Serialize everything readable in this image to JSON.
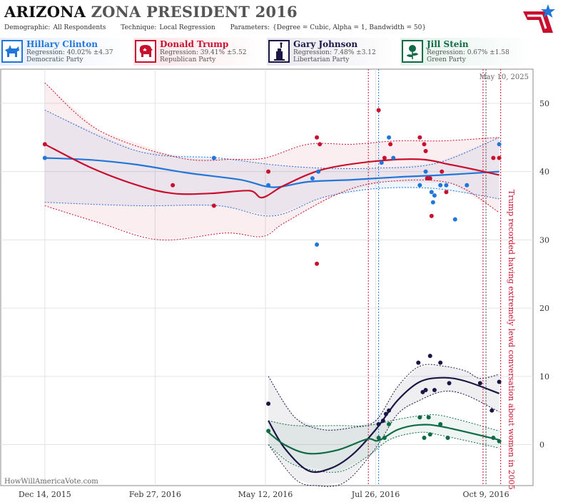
{
  "header": {
    "title_state": "ARIZONA",
    "title_race": "ZONA PRESIDENT 2016",
    "demographic_label": "Demographic:",
    "demographic_value": "All Respondents",
    "technique_label": "Technique:",
    "technique_value": "Local Regression",
    "parameters_label": "Parameters:",
    "parameters_value": "{Degree = Cubic, Alpha = 1, Bandwidth = 50}"
  },
  "candidates": [
    {
      "name": "Hillary Clinton",
      "regression": "Regression: 40.02% ±4.37",
      "party": "Democratic Party",
      "color": "#2176d9",
      "bg": "#e3eefb",
      "icon": "donkey-icon"
    },
    {
      "name": "Donald Trump",
      "regression": "Regression: 39.41% ±5.52",
      "party": "Republican Party",
      "color": "#c8102e",
      "bg": "#fbe3e6",
      "icon": "elephant-icon"
    },
    {
      "name": "Gary Johnson",
      "regression": "Regression: 7.48% ±3.12",
      "party": "Libertarian Party",
      "color": "#1a1747",
      "bg": "#e6e6ee",
      "icon": "liberty-statue-icon"
    },
    {
      "name": "Jill Stein",
      "regression": "Regression: 0.67% ±1.58",
      "party": "Green Party",
      "color": "#0f6b45",
      "bg": "#e2f1ea",
      "icon": "rose-icon"
    }
  ],
  "date_label": "May 10, 2025",
  "watermark": "HowWillAmericaVote.com",
  "annotation": "Trump recorded having extremely lewd conversation about women in 2005",
  "chart_data": {
    "type": "scatter",
    "x_axis": {
      "type": "date",
      "range": [
        "2015-11-14",
        "2016-11-10"
      ],
      "ticks": [
        "2015-12-14",
        "2016-02-27",
        "2016-05-12",
        "2016-07-26",
        "2016-10-09"
      ],
      "tick_labels": [
        "Dec 14, 2015",
        "Feb 27, 2016",
        "May 12, 2016",
        "Jul 26, 2016",
        "Oct 9, 2016"
      ]
    },
    "y_axis": {
      "range": [
        -6,
        55
      ],
      "ticks": [
        0,
        10,
        20,
        30,
        40,
        50
      ],
      "position": "right"
    },
    "grid": true,
    "event_lines": [
      {
        "date": "2016-07-21",
        "color": "#c8102e"
      },
      {
        "date": "2016-07-28",
        "color": "#2176d9"
      },
      {
        "date": "2016-10-07",
        "color": "#c8102e"
      },
      {
        "date": "2016-10-09",
        "color": "#555555"
      },
      {
        "date": "2016-10-19",
        "color": "#c8102e"
      }
    ],
    "series": [
      {
        "name": "Hillary Clinton",
        "color": "#2176d9",
        "points": [
          [
            "2015-12-14",
            42
          ],
          [
            "2016-04-07",
            42
          ],
          [
            "2016-05-14",
            38
          ],
          [
            "2016-06-13",
            39
          ],
          [
            "2016-06-16",
            29.3
          ],
          [
            "2016-06-17",
            40
          ],
          [
            "2016-07-30",
            41.3
          ],
          [
            "2016-08-04",
            45
          ],
          [
            "2016-08-07",
            42
          ],
          [
            "2016-08-25",
            38
          ],
          [
            "2016-08-29",
            40
          ],
          [
            "2016-08-31",
            39
          ],
          [
            "2016-09-02",
            37
          ],
          [
            "2016-09-03",
            35.5
          ],
          [
            "2016-09-04",
            36.5
          ],
          [
            "2016-09-08",
            38
          ],
          [
            "2016-09-12",
            38
          ],
          [
            "2016-09-18",
            33
          ],
          [
            "2016-09-26",
            38
          ],
          [
            "2016-10-18",
            44
          ]
        ],
        "trend": [
          [
            "2015-12-14",
            42
          ],
          [
            "2016-01-15",
            41.7
          ],
          [
            "2016-02-15",
            41
          ],
          [
            "2016-03-20",
            39.8
          ],
          [
            "2016-04-25",
            38.8
          ],
          [
            "2016-05-17",
            37.7
          ],
          [
            "2016-06-10",
            38.5
          ],
          [
            "2016-07-10",
            38.8
          ],
          [
            "2016-08-10",
            39.2
          ],
          [
            "2016-09-10",
            39.5
          ],
          [
            "2016-10-18",
            40
          ]
        ],
        "band_upper": [
          [
            "2015-12-14",
            49
          ],
          [
            "2016-02-15",
            43
          ],
          [
            "2016-04-10",
            42
          ],
          [
            "2016-05-17",
            41
          ],
          [
            "2016-06-20",
            40.5
          ],
          [
            "2016-07-26",
            40.5
          ],
          [
            "2016-09-05",
            41.2
          ],
          [
            "2016-10-18",
            45
          ]
        ],
        "band_lower": [
          [
            "2015-12-14",
            35.5
          ],
          [
            "2016-02-15",
            35
          ],
          [
            "2016-04-10",
            35
          ],
          [
            "2016-05-17",
            33.5
          ],
          [
            "2016-06-20",
            36.2
          ],
          [
            "2016-07-26",
            37.5
          ],
          [
            "2016-09-05",
            37.5
          ],
          [
            "2016-10-18",
            36
          ]
        ]
      },
      {
        "name": "Donald Trump",
        "color": "#c8102e",
        "points": [
          [
            "2015-12-14",
            44
          ],
          [
            "2016-03-10",
            38
          ],
          [
            "2016-04-07",
            35
          ],
          [
            "2016-05-14",
            40
          ],
          [
            "2016-06-16",
            45
          ],
          [
            "2016-06-16",
            26.5
          ],
          [
            "2016-06-18",
            44
          ],
          [
            "2016-07-28",
            49
          ],
          [
            "2016-08-01",
            42
          ],
          [
            "2016-08-05",
            44
          ],
          [
            "2016-08-25",
            45
          ],
          [
            "2016-08-28",
            44
          ],
          [
            "2016-08-29",
            43
          ],
          [
            "2016-08-30",
            39
          ],
          [
            "2016-09-01",
            39
          ],
          [
            "2016-09-02",
            33.5
          ],
          [
            "2016-09-09",
            40
          ],
          [
            "2016-09-12",
            37
          ],
          [
            "2016-10-14",
            42
          ],
          [
            "2016-10-18",
            42
          ]
        ],
        "trend": [
          [
            "2015-12-14",
            44
          ],
          [
            "2016-01-15",
            40.5
          ],
          [
            "2016-02-15",
            38
          ],
          [
            "2016-03-10",
            36.8
          ],
          [
            "2016-04-05",
            36.8
          ],
          [
            "2016-05-01",
            37.2
          ],
          [
            "2016-05-10",
            36.2
          ],
          [
            "2016-05-25",
            38
          ],
          [
            "2016-06-20",
            40.3
          ],
          [
            "2016-07-25",
            41.5
          ],
          [
            "2016-08-25",
            41.8
          ],
          [
            "2016-09-15",
            41
          ],
          [
            "2016-10-01",
            40.3
          ],
          [
            "2016-10-18",
            39.5
          ]
        ],
        "band_upper": [
          [
            "2015-12-14",
            53
          ],
          [
            "2016-01-20",
            46
          ],
          [
            "2016-03-15",
            42
          ],
          [
            "2016-04-20",
            41.8
          ],
          [
            "2016-05-12",
            42
          ],
          [
            "2016-06-10",
            44
          ],
          [
            "2016-07-10",
            44
          ],
          [
            "2016-08-10",
            44.5
          ],
          [
            "2016-09-10",
            44.5
          ],
          [
            "2016-10-18",
            45
          ]
        ],
        "band_lower": [
          [
            "2015-12-14",
            35
          ],
          [
            "2016-01-20",
            32.5
          ],
          [
            "2016-03-01",
            30
          ],
          [
            "2016-04-15",
            31
          ],
          [
            "2016-05-10",
            30.5
          ],
          [
            "2016-05-25",
            32.5
          ],
          [
            "2016-07-01",
            36.8
          ],
          [
            "2016-08-01",
            38.5
          ],
          [
            "2016-09-15",
            38.3
          ],
          [
            "2016-10-18",
            34
          ]
        ]
      },
      {
        "name": "Gary Johnson",
        "color": "#1a1747",
        "points": [
          [
            "2016-05-14",
            6
          ],
          [
            "2016-07-28",
            3
          ],
          [
            "2016-07-31",
            3.5
          ],
          [
            "2016-08-02",
            4.5
          ],
          [
            "2016-08-04",
            5
          ],
          [
            "2016-08-24",
            12
          ],
          [
            "2016-08-27",
            7.7
          ],
          [
            "2016-08-29",
            8
          ],
          [
            "2016-09-01",
            13
          ],
          [
            "2016-09-04",
            8
          ],
          [
            "2016-09-08",
            12
          ],
          [
            "2016-09-14",
            9
          ],
          [
            "2016-10-05",
            9
          ],
          [
            "2016-10-13",
            5
          ],
          [
            "2016-10-18",
            9.2
          ]
        ],
        "trend": [
          [
            "2016-05-14",
            3.5
          ],
          [
            "2016-05-25",
            -0.5
          ],
          [
            "2016-06-10",
            -3.8
          ],
          [
            "2016-06-25",
            -3.5
          ],
          [
            "2016-07-10",
            -1.5
          ],
          [
            "2016-07-26",
            2.2
          ],
          [
            "2016-08-10",
            6.5
          ],
          [
            "2016-08-25",
            9.2
          ],
          [
            "2016-09-10",
            9.8
          ],
          [
            "2016-09-25",
            9.3
          ],
          [
            "2016-10-18",
            7.5
          ]
        ],
        "band_upper": [
          [
            "2016-05-14",
            10
          ],
          [
            "2016-06-01",
            4
          ],
          [
            "2016-06-20",
            2.2
          ],
          [
            "2016-07-10",
            2.5
          ],
          [
            "2016-07-26",
            3.5
          ],
          [
            "2016-08-10",
            8.5
          ],
          [
            "2016-08-25",
            11.5
          ],
          [
            "2016-09-10",
            11.5
          ],
          [
            "2016-09-25",
            10.8
          ],
          [
            "2016-10-05",
            9.7
          ],
          [
            "2016-10-18",
            10.3
          ]
        ],
        "band_lower": [
          [
            "2016-05-14",
            0
          ],
          [
            "2016-06-01",
            -5
          ],
          [
            "2016-06-15",
            -6
          ],
          [
            "2016-07-05",
            -5.5
          ],
          [
            "2016-07-26",
            -0.5
          ],
          [
            "2016-08-10",
            4.5
          ],
          [
            "2016-08-25",
            6.5
          ],
          [
            "2016-09-10",
            7.8
          ],
          [
            "2016-09-25",
            7.3
          ],
          [
            "2016-10-18",
            4.8
          ]
        ]
      },
      {
        "name": "Jill Stein",
        "color": "#0f6b45",
        "points": [
          [
            "2016-05-14",
            2
          ],
          [
            "2016-07-28",
            1
          ],
          [
            "2016-08-01",
            1
          ],
          [
            "2016-08-04",
            3
          ],
          [
            "2016-08-25",
            4
          ],
          [
            "2016-08-28",
            1
          ],
          [
            "2016-08-31",
            4
          ],
          [
            "2016-09-01",
            1.5
          ],
          [
            "2016-09-08",
            3
          ],
          [
            "2016-09-13",
            1
          ],
          [
            "2016-10-14",
            1
          ],
          [
            "2016-10-18",
            0.5
          ]
        ],
        "trend": [
          [
            "2016-05-14",
            1.8
          ],
          [
            "2016-05-25",
            0
          ],
          [
            "2016-06-10",
            -1.3
          ],
          [
            "2016-06-30",
            -0.8
          ],
          [
            "2016-07-20",
            0.8
          ],
          [
            "2016-07-28",
            0.6
          ],
          [
            "2016-08-10",
            2.2
          ],
          [
            "2016-08-25",
            2.9
          ],
          [
            "2016-09-10",
            2.6
          ],
          [
            "2016-10-18",
            0.7
          ]
        ],
        "band_upper": [
          [
            "2016-05-14",
            3.5
          ],
          [
            "2016-06-01",
            2.8
          ],
          [
            "2016-06-30",
            2.8
          ],
          [
            "2016-07-20",
            2.8
          ],
          [
            "2016-08-10",
            3.7
          ],
          [
            "2016-08-25",
            4.2
          ],
          [
            "2016-09-10",
            4.2
          ],
          [
            "2016-10-18",
            2
          ]
        ],
        "band_lower": [
          [
            "2016-05-14",
            0
          ],
          [
            "2016-06-01",
            -3
          ],
          [
            "2016-06-30",
            -4
          ],
          [
            "2016-07-20",
            -1.8
          ],
          [
            "2016-08-05",
            0.8
          ],
          [
            "2016-08-25",
            1.8
          ],
          [
            "2016-09-10",
            1.3
          ],
          [
            "2016-10-18",
            -0.5
          ]
        ]
      }
    ]
  }
}
